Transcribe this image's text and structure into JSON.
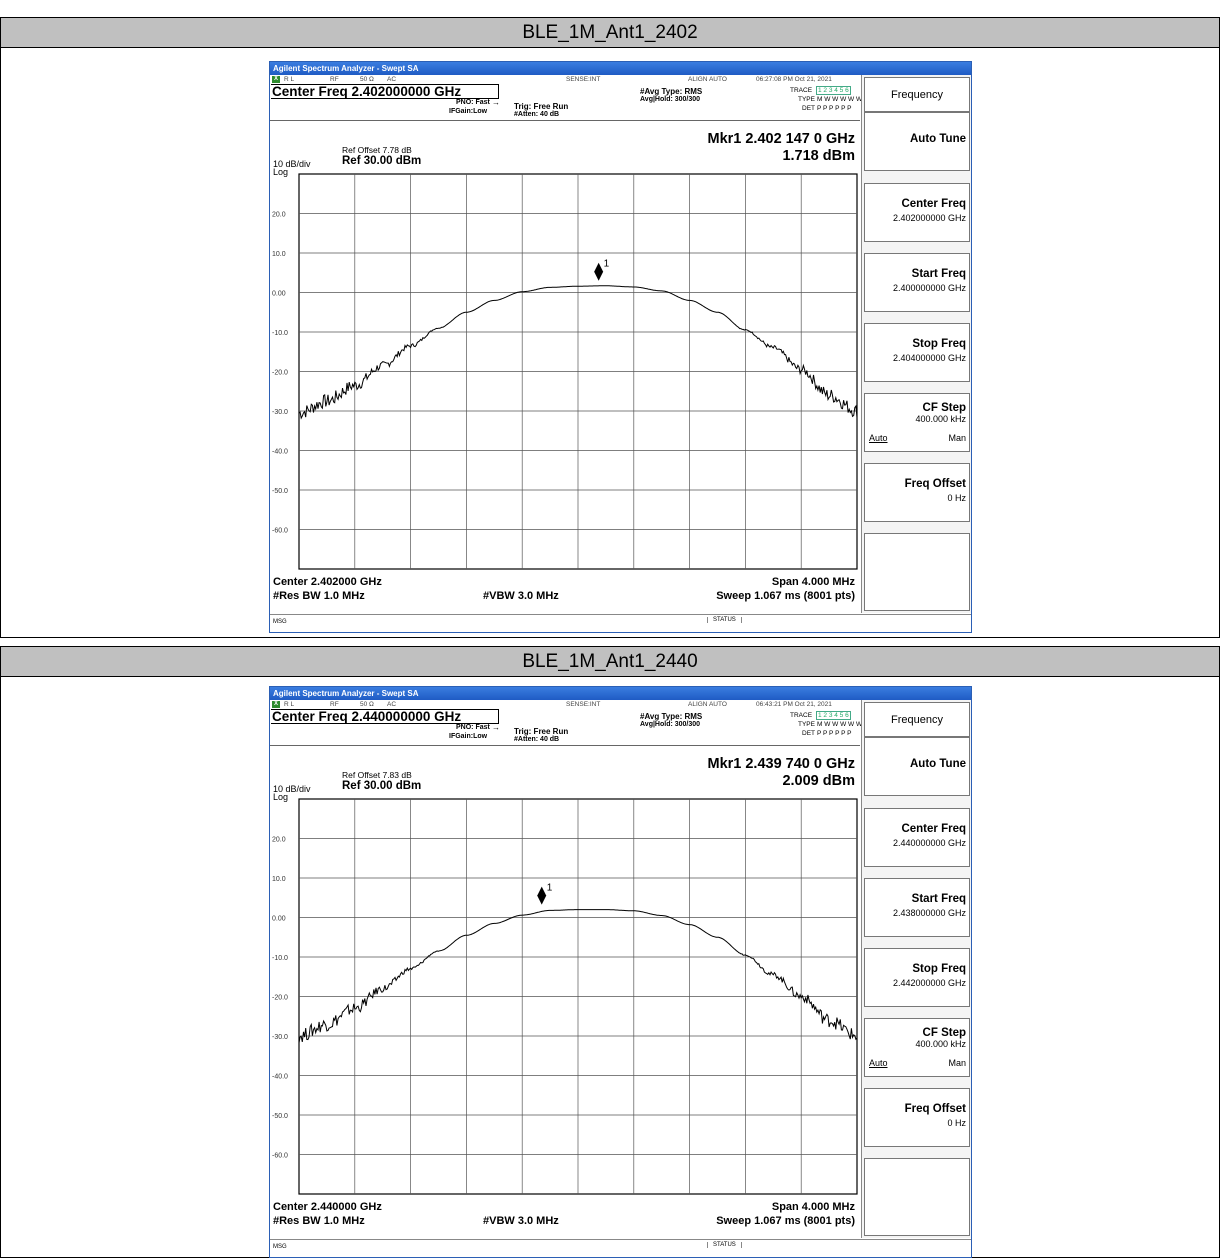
{
  "panels": [
    {
      "section_title": "BLE_1M_Ant1_2402",
      "window_title": "Agilent Spectrum Analyzer - Swept SA",
      "status_rl": "R L",
      "status_rf": "RF",
      "status_ohm": "50 Ω",
      "status_ac": "AC",
      "status_sense": "SENSE:INT",
      "status_align": "ALIGN AUTO",
      "status_time": "06:27:08 PM Oct 21, 2021",
      "center_freq_title": "Center Freq 2.402000000 GHz",
      "pno": "PNO: Fast",
      "ifgain": "IFGain:Low",
      "trig": "Trig: Free Run",
      "atten": "#Atten: 40 dB",
      "avg_type": "#Avg Type: RMS",
      "avg_hold": "Avg|Hold: 300/300",
      "trace_label": "TRACE",
      "trace_nums": "1 2 3 4 5 6",
      "type_label": "TYPE",
      "type_val": "M W W W W W",
      "det_label": "DET",
      "det_val": "P P P P P P",
      "ref_offset": "Ref Offset 7.78 dB",
      "div": "10 dB/div",
      "ref": "Ref 30.00 dBm",
      "log": "Log",
      "marker_freq": "Mkr1 2.402 147 0 GHz",
      "marker_level": "1.718 dBm",
      "marker_label": "1",
      "marker_pos": 0.537,
      "center_bottom": "Center 2.402000 GHz",
      "res_bw": "#Res BW 1.0 MHz",
      "vbw": "#VBW 3.0 MHz",
      "span": "Span 4.000 MHz",
      "sweep": "Sweep  1.067 ms (8001 pts)",
      "msg": "MSG",
      "status": "STATUS",
      "softkeys": {
        "header": "Frequency",
        "auto_tune": "Auto Tune",
        "center_freq": "Center Freq",
        "center_freq_val": "2.402000000 GHz",
        "start_freq": "Start Freq",
        "start_freq_val": "2.400000000 GHz",
        "stop_freq": "Stop Freq",
        "stop_freq_val": "2.404000000 GHz",
        "cf_step": "CF Step",
        "cf_step_val": "400.000 kHz",
        "auto": "Auto",
        "man": "Man",
        "freq_offset": "Freq Offset",
        "freq_offset_val": "0 Hz"
      },
      "chart_data": {
        "type": "line",
        "ylim": [
          -70,
          30
        ],
        "y_ticks": [
          "20.0",
          "10.0",
          "0.00",
          "-10.0",
          "-20.0",
          "-30.0",
          "-40.0",
          "-50.0",
          "-60.0"
        ],
        "x_range_mhz": [
          2400.0,
          2404.0
        ],
        "series": [
          {
            "values_x_mhz": [
              2400.0,
              2400.2,
              2400.4,
              2400.6,
              2400.8,
              2401.0,
              2401.2,
              2401.4,
              2401.6,
              2401.8,
              2402.0,
              2402.2,
              2402.4,
              2402.6,
              2402.8,
              2403.0,
              2403.2,
              2403.4,
              2403.6,
              2403.8,
              2404.0
            ],
            "values_dbm": [
              -30.5,
              -27.5,
              -23.5,
              -18.5,
              -13.5,
              -9.0,
              -5.0,
              -2.0,
              0.2,
              1.3,
              1.6,
              1.7,
              1.4,
              0.4,
              -2.0,
              -5.0,
              -9.5,
              -14.0,
              -19.5,
              -26.0,
              -30.0
            ]
          }
        ]
      }
    },
    {
      "section_title": "BLE_1M_Ant1_2440",
      "window_title": "Agilent Spectrum Analyzer - Swept SA",
      "status_rl": "R L",
      "status_rf": "RF",
      "status_ohm": "50 Ω",
      "status_ac": "AC",
      "status_sense": "SENSE:INT",
      "status_align": "ALIGN AUTO",
      "status_time": "06:43:21 PM Oct 21, 2021",
      "center_freq_title": "Center Freq 2.440000000 GHz",
      "pno": "PNO: Fast",
      "ifgain": "IFGain:Low",
      "trig": "Trig: Free Run",
      "atten": "#Atten: 40 dB",
      "avg_type": "#Avg Type: RMS",
      "avg_hold": "Avg|Hold: 300/300",
      "trace_label": "TRACE",
      "trace_nums": "1 2 3 4 5 6",
      "type_label": "TYPE",
      "type_val": "M W W W W W",
      "det_label": "DET",
      "det_val": "P P P P P P",
      "ref_offset": "Ref Offset 7.83 dB",
      "div": "10 dB/div",
      "ref": "Ref 30.00 dBm",
      "log": "Log",
      "marker_freq": "Mkr1 2.439 740 0 GHz",
      "marker_level": "2.009 dBm",
      "marker_label": "1",
      "marker_pos": 0.435,
      "center_bottom": "Center 2.440000 GHz",
      "res_bw": "#Res BW 1.0 MHz",
      "vbw": "#VBW 3.0 MHz",
      "span": "Span 4.000 MHz",
      "sweep": "Sweep  1.067 ms (8001 pts)",
      "msg": "MSG",
      "status": "STATUS",
      "softkeys": {
        "header": "Frequency",
        "auto_tune": "Auto Tune",
        "center_freq": "Center Freq",
        "center_freq_val": "2.440000000 GHz",
        "start_freq": "Start Freq",
        "start_freq_val": "2.438000000 GHz",
        "stop_freq": "Stop Freq",
        "stop_freq_val": "2.442000000 GHz",
        "cf_step": "CF Step",
        "cf_step_val": "400.000 kHz",
        "auto": "Auto",
        "man": "Man",
        "freq_offset": "Freq Offset",
        "freq_offset_val": "0 Hz"
      },
      "chart_data": {
        "type": "line",
        "ylim": [
          -70,
          30
        ],
        "y_ticks": [
          "20.0",
          "10.0",
          "0.00",
          "-10.0",
          "-20.0",
          "-30.0",
          "-40.0",
          "-50.0",
          "-60.0"
        ],
        "x_range_mhz": [
          2438.0,
          2442.0
        ],
        "series": [
          {
            "values_x_mhz": [
              2438.0,
              2438.2,
              2438.4,
              2438.6,
              2438.8,
              2439.0,
              2439.2,
              2439.4,
              2439.6,
              2439.8,
              2440.0,
              2440.2,
              2440.4,
              2440.6,
              2440.8,
              2441.0,
              2441.2,
              2441.4,
              2441.6,
              2441.8,
              2442.0
            ],
            "values_dbm": [
              -30.0,
              -27.0,
              -23.0,
              -18.0,
              -13.0,
              -8.5,
              -4.5,
              -1.5,
              0.6,
              1.8,
              2.0,
              2.0,
              1.7,
              0.5,
              -1.8,
              -5.0,
              -9.5,
              -14.5,
              -20.0,
              -26.0,
              -30.0
            ]
          }
        ]
      }
    }
  ]
}
